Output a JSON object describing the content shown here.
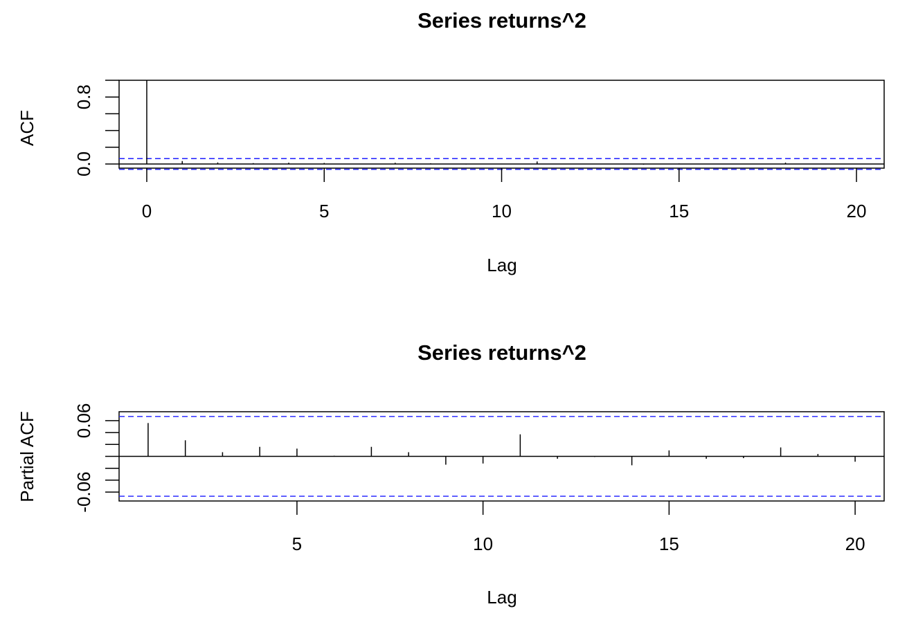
{
  "chart_data": [
    {
      "type": "bar",
      "title": "Series  returns^2",
      "xlabel": "Lag",
      "ylabel": "ACF",
      "xlim": [
        -0.78,
        20.78
      ],
      "ylim": [
        -0.05,
        1.0
      ],
      "x_ticks": [
        0,
        5,
        10,
        15,
        20
      ],
      "y_ticks": [
        0.0,
        0.8
      ],
      "y_minor_ticks": [
        0.0,
        0.2,
        0.4,
        0.6,
        0.8,
        1.0
      ],
      "conf_bound": 0.064,
      "conf_color": "#2b2bff",
      "bar_color": "#000000",
      "grid": false,
      "x": [
        0,
        1,
        2,
        3,
        4,
        5,
        6,
        7,
        8,
        9,
        10,
        11,
        12,
        13,
        14,
        15,
        16,
        17,
        18,
        19,
        20
      ],
      "values": [
        1.0,
        0.035,
        0.018,
        0.01,
        0.015,
        0.012,
        0.004,
        0.014,
        0.008,
        -0.006,
        0.004,
        0.03,
        -0.002,
        -0.001,
        -0.008,
        0.006,
        -0.001,
        -0.003,
        0.016,
        0.002,
        -0.004
      ]
    },
    {
      "type": "bar",
      "title": "Series  returns^2",
      "xlabel": "Lag",
      "ylabel": "Partial ACF",
      "xlim": [
        0.22,
        20.78
      ],
      "ylim": [
        -0.075,
        0.075
      ],
      "x_ticks": [
        5,
        10,
        15,
        20
      ],
      "y_ticks": [
        -0.06,
        0.06
      ],
      "y_minor_ticks": [
        -0.06,
        -0.04,
        -0.02,
        0.0,
        0.02,
        0.04,
        0.06
      ],
      "conf_bound": 0.067,
      "conf_color": "#2b2bff",
      "bar_color": "#000000",
      "grid": false,
      "x": [
        1,
        2,
        3,
        4,
        5,
        6,
        7,
        8,
        9,
        10,
        11,
        12,
        13,
        14,
        15,
        16,
        17,
        18,
        19,
        20
      ],
      "values": [
        0.056,
        0.027,
        0.007,
        0.016,
        0.013,
        0.001,
        0.016,
        0.007,
        -0.014,
        -0.012,
        0.037,
        -0.004,
        -0.001,
        -0.015,
        0.01,
        -0.004,
        -0.003,
        0.015,
        0.004,
        -0.009
      ]
    }
  ]
}
